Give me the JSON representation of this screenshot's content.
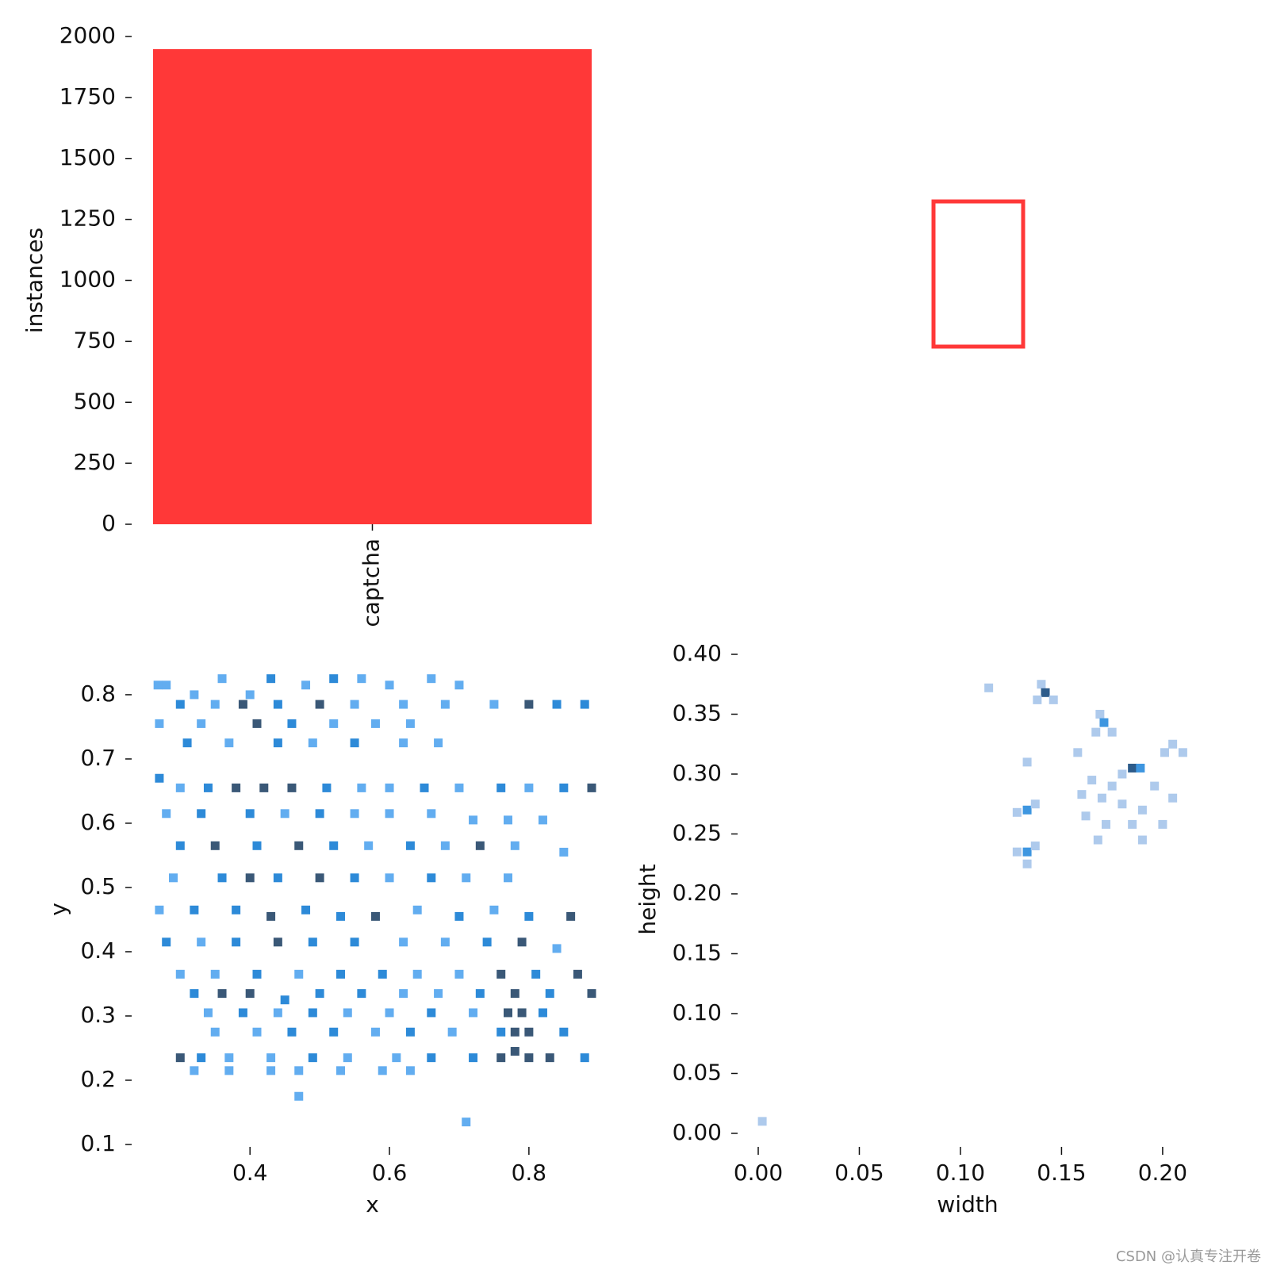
{
  "chart_data": [
    {
      "type": "bar",
      "ylabel": "instances",
      "categories": [
        "captcha"
      ],
      "values": [
        1948
      ],
      "color": "#ff3838",
      "ylim": [
        0,
        2000
      ],
      "yticks": [
        0,
        250,
        500,
        750,
        1000,
        1250,
        1500,
        1750,
        2000
      ]
    },
    {
      "type": "hist2d",
      "xlabel": "x",
      "ylabel": "y",
      "colors": [
        "#62adf0",
        "#2d8ad8",
        "#3a5877"
      ],
      "xlim": [
        0.261,
        0.89
      ],
      "ylim": [
        0.1,
        0.832
      ],
      "xticks": [
        0.4,
        0.6,
        0.8
      ],
      "yticks": [
        0.1,
        0.2,
        0.3,
        0.4,
        0.5,
        0.6,
        0.7,
        0.8
      ],
      "cells": [
        [
          0.268,
          0.815,
          1
        ],
        [
          0.28,
          0.815,
          1
        ],
        [
          0.32,
          0.8,
          1
        ],
        [
          0.36,
          0.825,
          1
        ],
        [
          0.4,
          0.8,
          1
        ],
        [
          0.43,
          0.825,
          2
        ],
        [
          0.48,
          0.815,
          1
        ],
        [
          0.52,
          0.825,
          2
        ],
        [
          0.56,
          0.825,
          1
        ],
        [
          0.6,
          0.815,
          1
        ],
        [
          0.66,
          0.825,
          1
        ],
        [
          0.7,
          0.815,
          1
        ],
        [
          0.3,
          0.785,
          2
        ],
        [
          0.35,
          0.785,
          1
        ],
        [
          0.39,
          0.785,
          3
        ],
        [
          0.44,
          0.785,
          2
        ],
        [
          0.5,
          0.785,
          3
        ],
        [
          0.55,
          0.785,
          1
        ],
        [
          0.62,
          0.785,
          1
        ],
        [
          0.68,
          0.785,
          1
        ],
        [
          0.75,
          0.785,
          1
        ],
        [
          0.8,
          0.785,
          3
        ],
        [
          0.84,
          0.785,
          2
        ],
        [
          0.88,
          0.785,
          2
        ],
        [
          0.27,
          0.755,
          1
        ],
        [
          0.33,
          0.755,
          1
        ],
        [
          0.41,
          0.755,
          3
        ],
        [
          0.46,
          0.755,
          2
        ],
        [
          0.52,
          0.755,
          1
        ],
        [
          0.58,
          0.755,
          1
        ],
        [
          0.63,
          0.755,
          1
        ],
        [
          0.31,
          0.725,
          2
        ],
        [
          0.37,
          0.725,
          1
        ],
        [
          0.44,
          0.725,
          2
        ],
        [
          0.49,
          0.725,
          1
        ],
        [
          0.55,
          0.725,
          2
        ],
        [
          0.62,
          0.725,
          1
        ],
        [
          0.67,
          0.725,
          1
        ],
        [
          0.27,
          0.67,
          2
        ],
        [
          0.3,
          0.655,
          1
        ],
        [
          0.34,
          0.655,
          2
        ],
        [
          0.38,
          0.655,
          3
        ],
        [
          0.42,
          0.655,
          3
        ],
        [
          0.46,
          0.655,
          3
        ],
        [
          0.51,
          0.655,
          2
        ],
        [
          0.56,
          0.655,
          1
        ],
        [
          0.6,
          0.655,
          1
        ],
        [
          0.65,
          0.655,
          2
        ],
        [
          0.7,
          0.655,
          1
        ],
        [
          0.76,
          0.655,
          2
        ],
        [
          0.8,
          0.655,
          1
        ],
        [
          0.85,
          0.655,
          2
        ],
        [
          0.89,
          0.655,
          3
        ],
        [
          0.28,
          0.615,
          1
        ],
        [
          0.33,
          0.615,
          2
        ],
        [
          0.4,
          0.615,
          2
        ],
        [
          0.45,
          0.615,
          1
        ],
        [
          0.5,
          0.615,
          2
        ],
        [
          0.55,
          0.615,
          1
        ],
        [
          0.6,
          0.615,
          1
        ],
        [
          0.66,
          0.615,
          1
        ],
        [
          0.72,
          0.605,
          1
        ],
        [
          0.77,
          0.605,
          1
        ],
        [
          0.82,
          0.605,
          1
        ],
        [
          0.3,
          0.565,
          2
        ],
        [
          0.35,
          0.565,
          3
        ],
        [
          0.41,
          0.565,
          2
        ],
        [
          0.47,
          0.565,
          3
        ],
        [
          0.52,
          0.565,
          2
        ],
        [
          0.57,
          0.565,
          1
        ],
        [
          0.63,
          0.565,
          2
        ],
        [
          0.68,
          0.565,
          1
        ],
        [
          0.73,
          0.565,
          3
        ],
        [
          0.78,
          0.565,
          1
        ],
        [
          0.85,
          0.555,
          1
        ],
        [
          0.29,
          0.515,
          1
        ],
        [
          0.36,
          0.515,
          2
        ],
        [
          0.4,
          0.515,
          3
        ],
        [
          0.44,
          0.515,
          2
        ],
        [
          0.5,
          0.515,
          3
        ],
        [
          0.55,
          0.515,
          2
        ],
        [
          0.6,
          0.515,
          1
        ],
        [
          0.66,
          0.515,
          2
        ],
        [
          0.71,
          0.515,
          1
        ],
        [
          0.77,
          0.515,
          1
        ],
        [
          0.27,
          0.465,
          1
        ],
        [
          0.32,
          0.465,
          2
        ],
        [
          0.38,
          0.465,
          2
        ],
        [
          0.43,
          0.455,
          3
        ],
        [
          0.48,
          0.465,
          2
        ],
        [
          0.53,
          0.455,
          2
        ],
        [
          0.58,
          0.455,
          3
        ],
        [
          0.64,
          0.465,
          1
        ],
        [
          0.7,
          0.455,
          2
        ],
        [
          0.75,
          0.465,
          1
        ],
        [
          0.8,
          0.455,
          2
        ],
        [
          0.86,
          0.455,
          3
        ],
        [
          0.28,
          0.415,
          2
        ],
        [
          0.33,
          0.415,
          1
        ],
        [
          0.38,
          0.415,
          2
        ],
        [
          0.44,
          0.415,
          3
        ],
        [
          0.49,
          0.415,
          2
        ],
        [
          0.55,
          0.415,
          2
        ],
        [
          0.62,
          0.415,
          1
        ],
        [
          0.68,
          0.415,
          1
        ],
        [
          0.74,
          0.415,
          2
        ],
        [
          0.79,
          0.415,
          3
        ],
        [
          0.84,
          0.405,
          1
        ],
        [
          0.3,
          0.365,
          1
        ],
        [
          0.35,
          0.365,
          1
        ],
        [
          0.41,
          0.365,
          2
        ],
        [
          0.47,
          0.365,
          1
        ],
        [
          0.53,
          0.365,
          2
        ],
        [
          0.59,
          0.365,
          2
        ],
        [
          0.64,
          0.365,
          1
        ],
        [
          0.7,
          0.365,
          1
        ],
        [
          0.76,
          0.365,
          3
        ],
        [
          0.81,
          0.365,
          2
        ],
        [
          0.87,
          0.365,
          3
        ],
        [
          0.32,
          0.335,
          2
        ],
        [
          0.36,
          0.335,
          3
        ],
        [
          0.4,
          0.335,
          3
        ],
        [
          0.45,
          0.325,
          2
        ],
        [
          0.5,
          0.335,
          2
        ],
        [
          0.56,
          0.335,
          2
        ],
        [
          0.62,
          0.335,
          1
        ],
        [
          0.67,
          0.335,
          1
        ],
        [
          0.73,
          0.335,
          2
        ],
        [
          0.78,
          0.335,
          3
        ],
        [
          0.83,
          0.335,
          2
        ],
        [
          0.89,
          0.335,
          3
        ],
        [
          0.34,
          0.305,
          1
        ],
        [
          0.39,
          0.305,
          2
        ],
        [
          0.44,
          0.305,
          1
        ],
        [
          0.49,
          0.305,
          2
        ],
        [
          0.54,
          0.305,
          1
        ],
        [
          0.6,
          0.305,
          1
        ],
        [
          0.66,
          0.305,
          2
        ],
        [
          0.72,
          0.305,
          1
        ],
        [
          0.77,
          0.305,
          3
        ],
        [
          0.79,
          0.305,
          3
        ],
        [
          0.82,
          0.305,
          2
        ],
        [
          0.35,
          0.275,
          1
        ],
        [
          0.41,
          0.275,
          1
        ],
        [
          0.46,
          0.275,
          2
        ],
        [
          0.52,
          0.275,
          2
        ],
        [
          0.58,
          0.275,
          1
        ],
        [
          0.63,
          0.275,
          2
        ],
        [
          0.69,
          0.275,
          1
        ],
        [
          0.76,
          0.275,
          2
        ],
        [
          0.78,
          0.275,
          3
        ],
        [
          0.8,
          0.275,
          3
        ],
        [
          0.85,
          0.275,
          2
        ],
        [
          0.3,
          0.235,
          3
        ],
        [
          0.33,
          0.235,
          2
        ],
        [
          0.37,
          0.235,
          1
        ],
        [
          0.43,
          0.235,
          1
        ],
        [
          0.49,
          0.235,
          2
        ],
        [
          0.54,
          0.235,
          1
        ],
        [
          0.61,
          0.235,
          1
        ],
        [
          0.66,
          0.235,
          2
        ],
        [
          0.72,
          0.235,
          2
        ],
        [
          0.76,
          0.235,
          3
        ],
        [
          0.78,
          0.245,
          3
        ],
        [
          0.8,
          0.235,
          3
        ],
        [
          0.83,
          0.235,
          3
        ],
        [
          0.88,
          0.235,
          2
        ],
        [
          0.32,
          0.215,
          1
        ],
        [
          0.37,
          0.215,
          1
        ],
        [
          0.43,
          0.215,
          1
        ],
        [
          0.47,
          0.215,
          1
        ],
        [
          0.53,
          0.215,
          1
        ],
        [
          0.59,
          0.215,
          1
        ],
        [
          0.63,
          0.215,
          1
        ],
        [
          0.47,
          0.175,
          1
        ],
        [
          0.71,
          0.135,
          1
        ]
      ]
    },
    {
      "type": "hist2d",
      "xlabel": "width",
      "ylabel": "height",
      "colors": [
        "#aecaec",
        "#3e96e0",
        "#2c5b8a"
      ],
      "xlim": [
        -0.0102,
        0.2173
      ],
      "ylim": [
        -0.0093,
        0.4
      ],
      "xticks": [
        {
          "value": 0,
          "label": "0.00"
        },
        {
          "value": 0.05,
          "label": "0.05"
        },
        {
          "value": 0.1,
          "label": "0.10"
        },
        {
          "value": 0.15,
          "label": "0.15"
        },
        {
          "value": 0.2,
          "label": "0.20"
        }
      ],
      "yticks": [
        {
          "value": 0,
          "label": "0.00"
        },
        {
          "value": 0.05,
          "label": "0.05"
        },
        {
          "value": 0.1,
          "label": "0.10"
        },
        {
          "value": 0.15,
          "label": "0.15"
        },
        {
          "value": 0.2,
          "label": "0.20"
        },
        {
          "value": 0.25,
          "label": "0.25"
        },
        {
          "value": 0.3,
          "label": "0.30"
        },
        {
          "value": 0.35,
          "label": "0.35"
        },
        {
          "value": 0.4,
          "label": "0.40"
        }
      ],
      "cells": [
        [
          0.114,
          0.372,
          1
        ],
        [
          0.14,
          0.375,
          1
        ],
        [
          0.142,
          0.368,
          3
        ],
        [
          0.138,
          0.362,
          1
        ],
        [
          0.146,
          0.362,
          1
        ],
        [
          0.169,
          0.35,
          1
        ],
        [
          0.171,
          0.343,
          2
        ],
        [
          0.175,
          0.335,
          1
        ],
        [
          0.167,
          0.335,
          1
        ],
        [
          0.205,
          0.325,
          1
        ],
        [
          0.21,
          0.318,
          1
        ],
        [
          0.201,
          0.318,
          1
        ],
        [
          0.185,
          0.305,
          3
        ],
        [
          0.189,
          0.305,
          2
        ],
        [
          0.18,
          0.3,
          1
        ],
        [
          0.175,
          0.29,
          1
        ],
        [
          0.165,
          0.295,
          1
        ],
        [
          0.17,
          0.28,
          1
        ],
        [
          0.16,
          0.283,
          1
        ],
        [
          0.18,
          0.275,
          1
        ],
        [
          0.19,
          0.27,
          1
        ],
        [
          0.162,
          0.265,
          1
        ],
        [
          0.172,
          0.258,
          1
        ],
        [
          0.185,
          0.258,
          1
        ],
        [
          0.2,
          0.258,
          1
        ],
        [
          0.168,
          0.245,
          1
        ],
        [
          0.19,
          0.245,
          1
        ],
        [
          0.133,
          0.31,
          1
        ],
        [
          0.133,
          0.27,
          2
        ],
        [
          0.128,
          0.268,
          1
        ],
        [
          0.137,
          0.275,
          1
        ],
        [
          0.133,
          0.235,
          2
        ],
        [
          0.128,
          0.235,
          1
        ],
        [
          0.137,
          0.24,
          1
        ],
        [
          0.133,
          0.225,
          1
        ],
        [
          0.002,
          0.01,
          1
        ],
        [
          0.158,
          0.318,
          1
        ],
        [
          0.196,
          0.29,
          1
        ],
        [
          0.205,
          0.28,
          1
        ]
      ]
    }
  ],
  "watermark": "CSDN @认真专注开卷"
}
